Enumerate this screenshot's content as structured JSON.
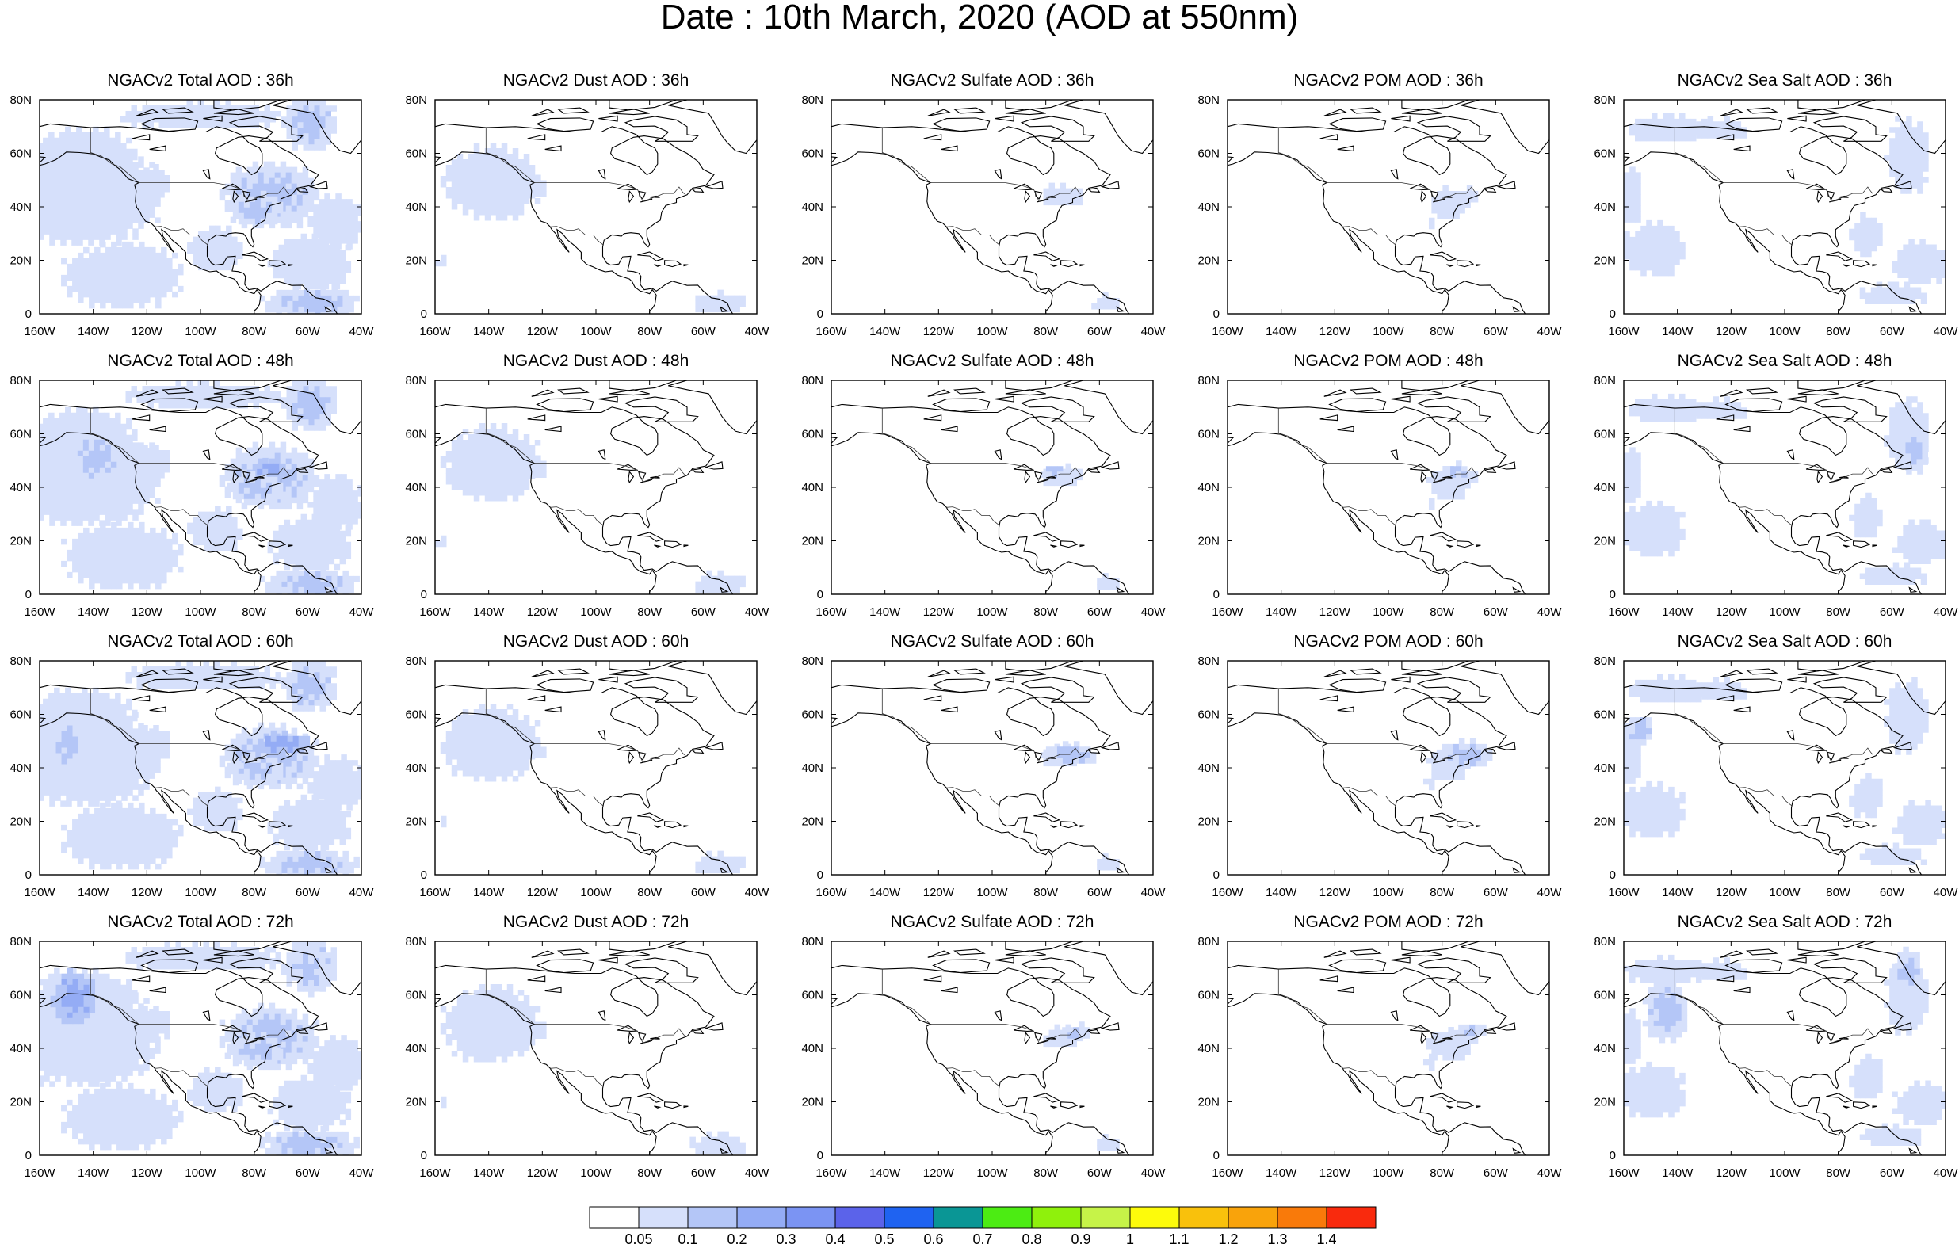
{
  "title": "Date : 10th March, 2020 (AOD at 550nm)",
  "axes": {
    "x_ticks": [
      "160W",
      "140W",
      "120W",
      "100W",
      "80W",
      "60W",
      "40W"
    ],
    "y_ticks": [
      "0",
      "20N",
      "40N",
      "60N",
      "80N"
    ]
  },
  "panels": [
    {
      "title": "NGACv2 Total AOD : 36h",
      "species": "total",
      "lead": 36
    },
    {
      "title": "NGACv2 Dust AOD : 36h",
      "species": "dust",
      "lead": 36
    },
    {
      "title": "NGACv2 Sulfate AOD : 36h",
      "species": "sulfate",
      "lead": 36
    },
    {
      "title": "NGACv2 POM AOD : 36h",
      "species": "pom",
      "lead": 36
    },
    {
      "title": "NGACv2 Sea Salt AOD : 36h",
      "species": "seasalt",
      "lead": 36
    },
    {
      "title": "NGACv2 Total AOD : 48h",
      "species": "total",
      "lead": 48
    },
    {
      "title": "NGACv2 Dust AOD : 48h",
      "species": "dust",
      "lead": 48
    },
    {
      "title": "NGACv2 Sulfate AOD : 48h",
      "species": "sulfate",
      "lead": 48
    },
    {
      "title": "NGACv2 POM AOD : 48h",
      "species": "pom",
      "lead": 48
    },
    {
      "title": "NGACv2 Sea Salt AOD : 48h",
      "species": "seasalt",
      "lead": 48
    },
    {
      "title": "NGACv2 Total AOD : 60h",
      "species": "total",
      "lead": 60
    },
    {
      "title": "NGACv2 Dust AOD : 60h",
      "species": "dust",
      "lead": 60
    },
    {
      "title": "NGACv2 Sulfate AOD : 60h",
      "species": "sulfate",
      "lead": 60
    },
    {
      "title": "NGACv2 POM AOD : 60h",
      "species": "pom",
      "lead": 60
    },
    {
      "title": "NGACv2 Sea Salt AOD : 60h",
      "species": "seasalt",
      "lead": 60
    },
    {
      "title": "NGACv2 Total AOD : 72h",
      "species": "total",
      "lead": 72
    },
    {
      "title": "NGACv2 Dust AOD : 72h",
      "species": "dust",
      "lead": 72
    },
    {
      "title": "NGACv2 Sulfate AOD : 72h",
      "species": "sulfate",
      "lead": 72
    },
    {
      "title": "NGACv2 POM AOD : 72h",
      "species": "pom",
      "lead": 72
    },
    {
      "title": "NGACv2 Sea Salt  AOD : 72h",
      "species": "seasalt",
      "lead": 72
    }
  ],
  "legend": {
    "labels": [
      "0.05",
      "0.1",
      "0.2",
      "0.3",
      "0.4",
      "0.5",
      "0.6",
      "0.7",
      "0.8",
      "0.9",
      "1",
      "1.1",
      "1.2",
      "1.3",
      "1.4"
    ],
    "colors": [
      "#ffffff",
      "#d6e0fb",
      "#b4c6f7",
      "#94acf5",
      "#7b94f3",
      "#5b63ea",
      "#1f63f1",
      "#0a9695",
      "#4cec13",
      "#8ff10c",
      "#c6f348",
      "#fdfb0b",
      "#f9c10c",
      "#f9a30b",
      "#f97a0a",
      "#f92a0d"
    ]
  },
  "colors": {
    "aod_low": "#d6e0fb",
    "aod_mid": "#b4c6f7",
    "aod_high": "#94acf5",
    "coastline": "#000000"
  }
}
